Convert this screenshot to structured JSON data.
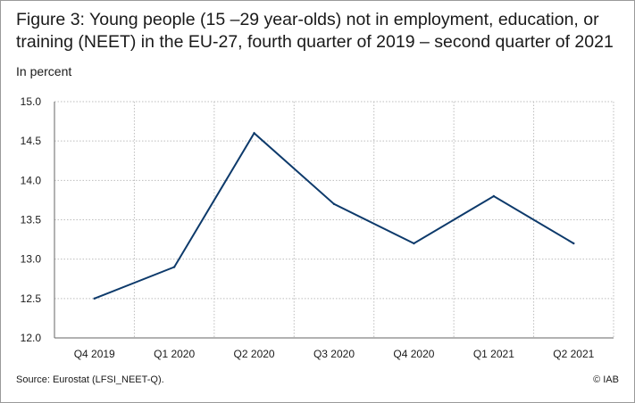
{
  "title": "Figure 3: Young people (15 –29 year-olds) not in employment, education, or training (NEET) in the EU-27, fourth quarter of 2019 – second quarter of 2021",
  "subtitle": "In percent",
  "source": "Source: Eurostat (LFSI_NEET-Q).",
  "copyright": "© IAB",
  "colors": {
    "line": "#0d3a6b",
    "grid": "#bdbdbd",
    "axis": "#666666"
  },
  "chart_data": {
    "type": "line",
    "categories": [
      "Q4 2019",
      "Q1 2020",
      "Q2 2020",
      "Q3 2020",
      "Q4 2020",
      "Q1 2021",
      "Q2 2021"
    ],
    "series": [
      {
        "values": [
          12.5,
          12.9,
          14.6,
          13.7,
          13.2,
          13.8,
          13.2
        ]
      }
    ],
    "ylim": [
      12.0,
      15.0
    ],
    "yticks": [
      "12.0",
      "12.5",
      "13.0",
      "13.5",
      "14.0",
      "14.5",
      "15.0"
    ],
    "xlabel": "",
    "ylabel": "",
    "grid": true
  }
}
